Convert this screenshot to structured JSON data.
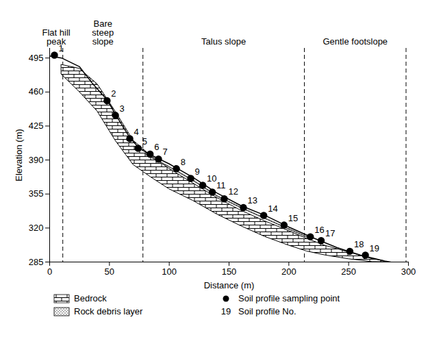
{
  "chart_data": {
    "type": "line",
    "x_label": "Distance (m)",
    "y_label": "Elevation (m)",
    "xlim": [
      0,
      300
    ],
    "xticks": [
      0,
      50,
      100,
      150,
      200,
      250,
      300
    ],
    "ylim": [
      285,
      505
    ],
    "yticks": [
      285,
      320,
      355,
      390,
      425,
      460,
      495
    ],
    "zones": [
      {
        "label": "Flat hill peak",
        "x": [
          0,
          11
        ]
      },
      {
        "label": "Bare steep slope",
        "x": [
          11,
          78
        ]
      },
      {
        "label": "Talus slope",
        "x": [
          78,
          213
        ]
      },
      {
        "label": "Gentle footslope",
        "x": [
          213,
          298
        ]
      }
    ],
    "legend": "bottom",
    "series": [
      {
        "name": "Bedrock",
        "type": "area",
        "color": "#000000",
        "x": [
          10,
          25,
          40,
          55,
          70,
          85,
          100,
          120,
          140,
          160,
          180,
          200,
          215,
          230,
          250,
          270,
          280
        ],
        "values": [
          488,
          484,
          468,
          440,
          410,
          394,
          381,
          366,
          351,
          338,
          327,
          317,
          309,
          302,
          295,
          288,
          286
        ],
        "bottom": [
          478,
          460,
          440,
          410,
          385,
          372,
          360,
          348,
          334,
          322,
          311,
          302,
          296,
          292,
          288,
          285,
          285
        ]
      },
      {
        "name": "Soil profile sampling point",
        "type": "scatter",
        "marker": "circle",
        "color": "#000000",
        "labels_name": "Soil profile No.",
        "labels": [
          1,
          2,
          3,
          4,
          5,
          6,
          7,
          8,
          9,
          10,
          11,
          12,
          13,
          14,
          15,
          16,
          17,
          18,
          19
        ],
        "x": [
          4,
          48,
          55,
          67,
          74,
          84,
          91,
          106,
          118,
          128,
          136,
          146,
          162,
          179,
          196,
          218,
          227,
          251,
          264
        ],
        "values": [
          498,
          451,
          436,
          412,
          402,
          396,
          391,
          381,
          371,
          364,
          357,
          350,
          341,
          333,
          323,
          311,
          307,
          296,
          292
        ]
      },
      {
        "name": "Rock debris layer",
        "type": "line",
        "line_style": "dotted",
        "color": "#555555",
        "x": [
          80,
          100,
          120,
          140,
          160,
          180,
          200,
          215
        ],
        "values": [
          396,
          383,
          369,
          353,
          341,
          330,
          319,
          311
        ]
      },
      {
        "type": "line",
        "line_style": "solid",
        "color": "#000000",
        "x": [
          0,
          10,
          25,
          35,
          48,
          55,
          67,
          75,
          85,
          100,
          120,
          140,
          160,
          180,
          200,
          220,
          240,
          260,
          280,
          285
        ],
        "values": [
          497,
          495,
          486,
          470,
          452,
          437,
          413,
          402,
          395,
          386,
          372,
          356,
          343,
          333,
          321,
          310,
          300,
          292,
          286,
          285
        ]
      }
    ]
  }
}
